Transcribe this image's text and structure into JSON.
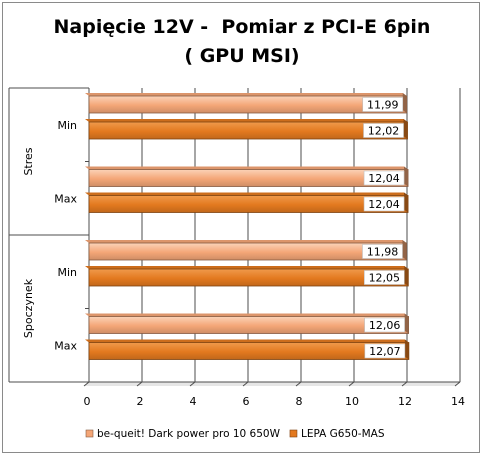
{
  "chart_data": {
    "type": "bar",
    "orientation": "horizontal",
    "title_line1": "Napięcie 12V -  Pomiar z PCI-E 6pin",
    "title_line2": "( GPU MSI)",
    "groups": [
      {
        "label": "Stres",
        "rows": [
          {
            "label": "Min",
            "values": [
              11.99,
              12.02
            ],
            "value_labels": [
              "11,99",
              "12,02"
            ]
          },
          {
            "label": "Max",
            "values": [
              12.04,
              12.04
            ],
            "value_labels": [
              "12,04",
              "12,04"
            ]
          }
        ]
      },
      {
        "label": "Spoczynek",
        "rows": [
          {
            "label": "Min",
            "values": [
              11.98,
              12.05
            ],
            "value_labels": [
              "11,98",
              "12,05"
            ]
          },
          {
            "label": "Max",
            "values": [
              12.06,
              12.07
            ],
            "value_labels": [
              "12,06",
              "12,07"
            ]
          }
        ]
      }
    ],
    "series": [
      {
        "name": "be-queit! Dark  power pro 10  650W",
        "color": "#f4a677"
      },
      {
        "name": "LEPA G650-MAS",
        "color": "#e3791f"
      }
    ],
    "xlim": [
      0,
      14
    ],
    "xticks": [
      0,
      2,
      4,
      6,
      8,
      10,
      12,
      14
    ],
    "grid": true,
    "legend_position": "bottom"
  }
}
